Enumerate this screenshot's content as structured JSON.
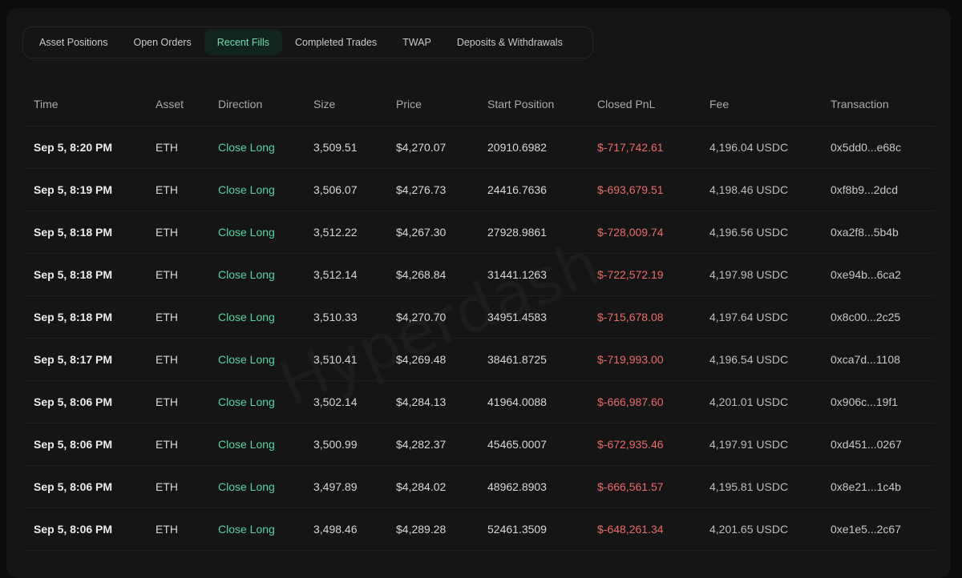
{
  "tabs": [
    {
      "label": "Asset Positions",
      "active": false
    },
    {
      "label": "Open Orders",
      "active": false
    },
    {
      "label": "Recent Fills",
      "active": true
    },
    {
      "label": "Completed Trades",
      "active": false
    },
    {
      "label": "TWAP",
      "active": false
    },
    {
      "label": "Deposits & Withdrawals",
      "active": false
    }
  ],
  "columns": [
    "Time",
    "Asset",
    "Direction",
    "Size",
    "Price",
    "Start Position",
    "Closed PnL",
    "Fee",
    "Transaction"
  ],
  "rows": [
    [
      "Sep 5, 8:20 PM",
      "ETH",
      "Close Long",
      "3,509.51",
      "$4,270.07",
      "20910.6982",
      "$-717,742.61",
      "4,196.04 USDC",
      "0x5dd0...e68c"
    ],
    [
      "Sep 5, 8:19 PM",
      "ETH",
      "Close Long",
      "3,506.07",
      "$4,276.73",
      "24416.7636",
      "$-693,679.51",
      "4,198.46 USDC",
      "0xf8b9...2dcd"
    ],
    [
      "Sep 5, 8:18 PM",
      "ETH",
      "Close Long",
      "3,512.22",
      "$4,267.30",
      "27928.9861",
      "$-728,009.74",
      "4,196.56 USDC",
      "0xa2f8...5b4b"
    ],
    [
      "Sep 5, 8:18 PM",
      "ETH",
      "Close Long",
      "3,512.14",
      "$4,268.84",
      "31441.1263",
      "$-722,572.19",
      "4,197.98 USDC",
      "0xe94b...6ca2"
    ],
    [
      "Sep 5, 8:18 PM",
      "ETH",
      "Close Long",
      "3,510.33",
      "$4,270.70",
      "34951.4583",
      "$-715,678.08",
      "4,197.64 USDC",
      "0x8c00...2c25"
    ],
    [
      "Sep 5, 8:17 PM",
      "ETH",
      "Close Long",
      "3,510.41",
      "$4,269.48",
      "38461.8725",
      "$-719,993.00",
      "4,196.54 USDC",
      "0xca7d...1108"
    ],
    [
      "Sep 5, 8:06 PM",
      "ETH",
      "Close Long",
      "3,502.14",
      "$4,284.13",
      "41964.0088",
      "$-666,987.60",
      "4,201.01 USDC",
      "0x906c...19f1"
    ],
    [
      "Sep 5, 8:06 PM",
      "ETH",
      "Close Long",
      "3,500.99",
      "$4,282.37",
      "45465.0007",
      "$-672,935.46",
      "4,197.91 USDC",
      "0xd451...0267"
    ],
    [
      "Sep 5, 8:06 PM",
      "ETH",
      "Close Long",
      "3,497.89",
      "$4,284.02",
      "48962.8903",
      "$-666,561.57",
      "4,195.81 USDC",
      "0x8e21...1c4b"
    ],
    [
      "Sep 5, 8:06 PM",
      "ETH",
      "Close Long",
      "3,498.46",
      "$4,289.28",
      "52461.3509",
      "$-648,261.34",
      "4,201.65 USDC",
      "0xe1e5...2c67"
    ]
  ],
  "watermark": "Hyperdash",
  "colors": {
    "background": "#151515",
    "active_tab_bg": "#12241e",
    "active_tab_text": "#6fdcb0",
    "direction_green": "#58d4a2",
    "pnl_red": "#ea6b68"
  }
}
